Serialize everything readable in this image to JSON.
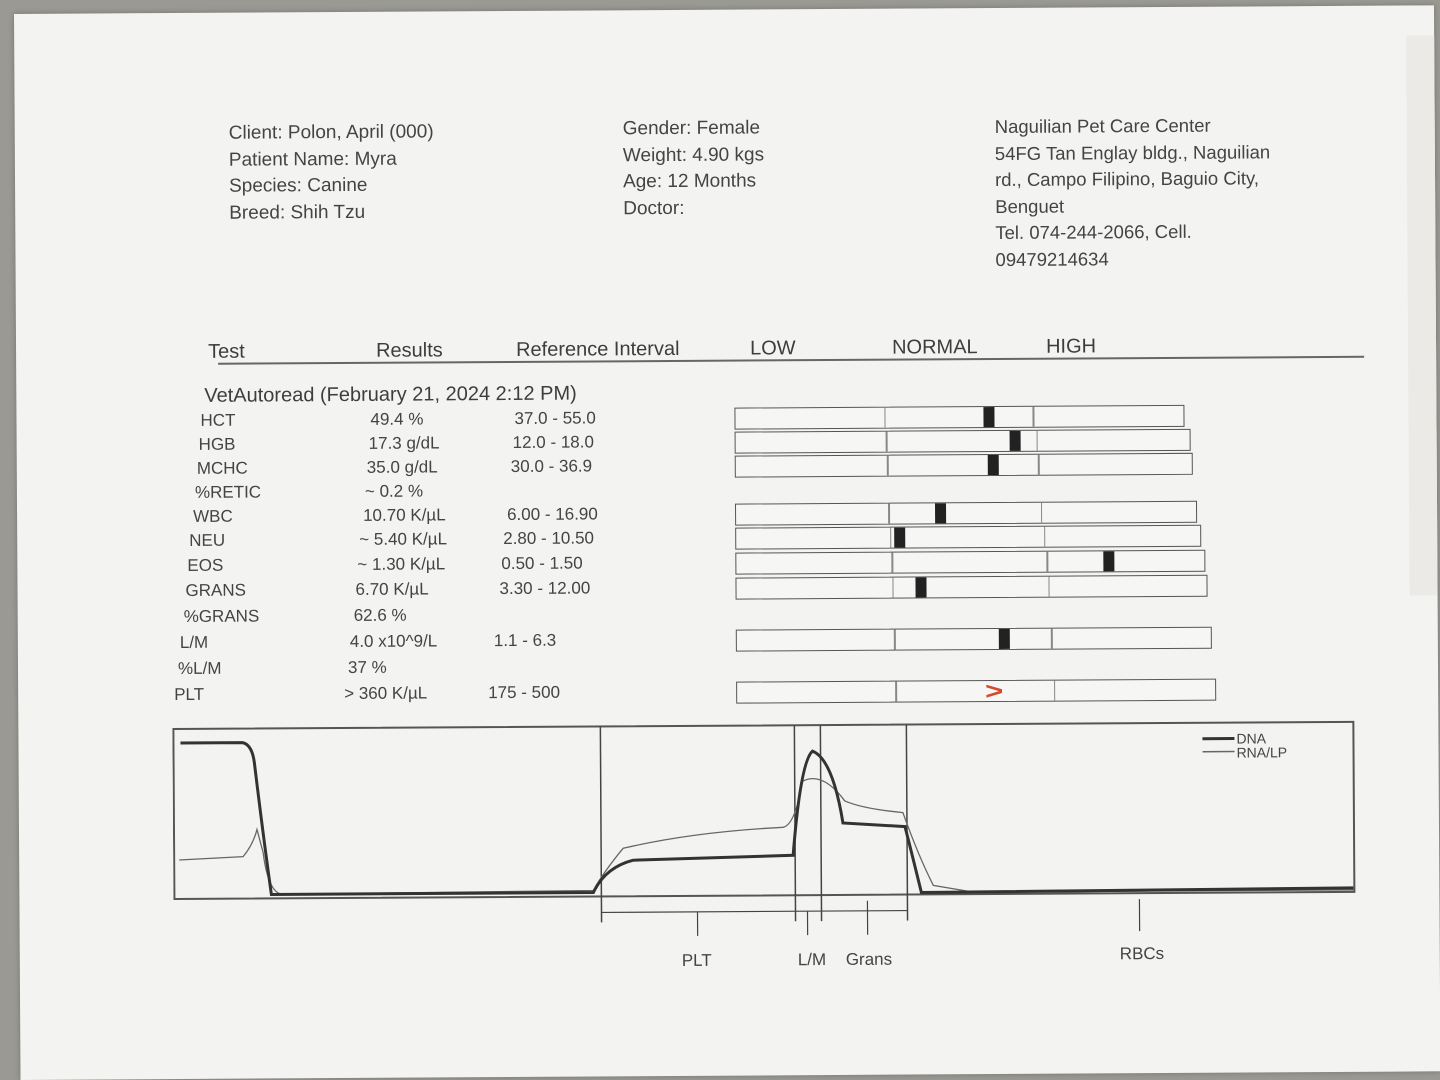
{
  "header": {
    "client": "Client: Polon, April (000)",
    "patient": "Patient Name: Myra",
    "species": "Species: Canine",
    "breed": "Breed: Shih Tzu",
    "gender": "Gender: Female",
    "weight": "Weight: 4.90 kgs",
    "age": "Age: 12 Months",
    "doctor": "Doctor:",
    "clinic_lines": [
      "Naguilian Pet Care Center",
      "54FG Tan Englay bldg., Naguilian",
      "rd., Campo Filipino, Baguio City,",
      "Benguet",
      "Tel. 074-244-2066,      Cell.",
      "09479214634"
    ]
  },
  "columns": {
    "test": "Test",
    "results": "Results",
    "reference": "Reference Interval",
    "low": "LOW",
    "normal": "NORMAL",
    "high": "HIGH"
  },
  "section_title": "VetAutoread (February 21, 2024 2:12 PM)",
  "rows": [
    {
      "test": "HCT",
      "result": "49.4 %",
      "ref": "37.0 - 55.0",
      "marker": 0.55
    },
    {
      "test": "HGB",
      "result": "17.3 g/dL",
      "ref": "12.0 - 18.0",
      "marker": 0.6
    },
    {
      "test": "MCHC",
      "result": "35.0 g/dL",
      "ref": "30.0 - 36.9",
      "marker": 0.55
    },
    {
      "test": "%RETIC",
      "result": "~ 0.2 %",
      "ref": ""
    },
    {
      "test": "WBC",
      "result": "10.70 K/µL",
      "ref": "6.00 - 16.90",
      "marker": 0.43
    },
    {
      "test": "NEU",
      "result": "~ 5.40 K/µL",
      "ref": "2.80 - 10.50",
      "marker": 0.34
    },
    {
      "test": "EOS",
      "result": "~ 1.30 K/µL",
      "ref": "0.50 - 1.50",
      "marker": 0.78
    },
    {
      "test": "GRANS",
      "result": "6.70 K/µL",
      "ref": "3.30 - 12.00",
      "marker": 0.38
    },
    {
      "test": "%GRANS",
      "result": "62.6 %",
      "ref": ""
    },
    {
      "test": "L/M",
      "result": "4.0 x10^9/L",
      "ref": "1.1 - 6.3",
      "marker": 0.55
    },
    {
      "test": "%L/M",
      "result": "37 %",
      "ref": ""
    },
    {
      "test": "PLT",
      "result": "> 360 K/µL",
      "ref": "175 - 500",
      "arrow": ">"
    }
  ],
  "histogram": {
    "legend": [
      "DNA",
      "RNA/LP"
    ],
    "regions": [
      "PLT",
      "L/M",
      "Grans",
      "RBCs"
    ]
  }
}
